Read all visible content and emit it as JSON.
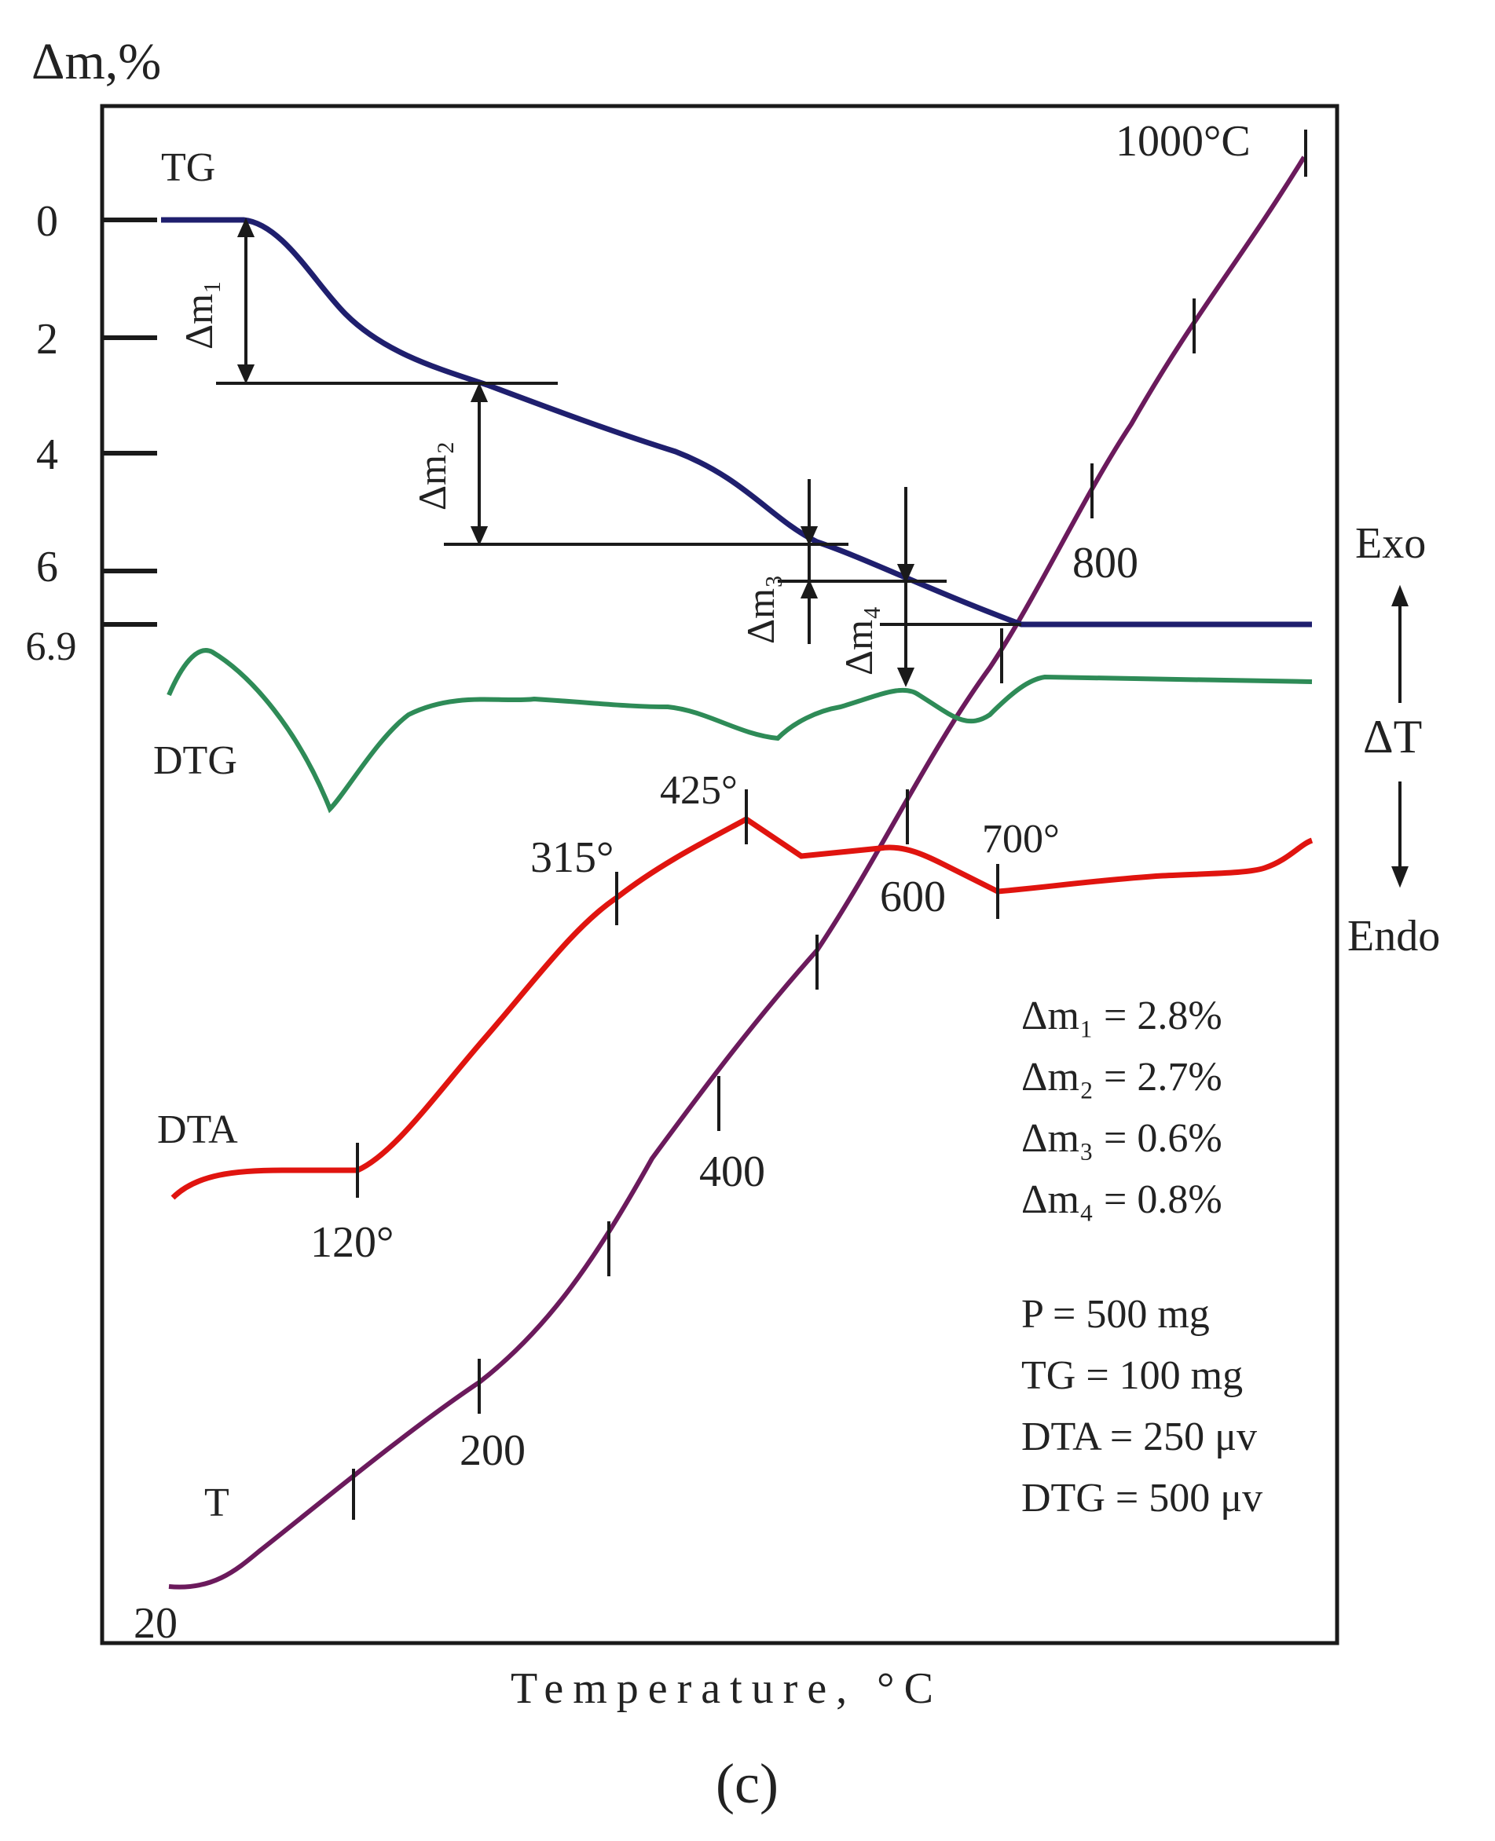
{
  "colors": {
    "frame": "#1a1a1a",
    "tg": "#1f1f6e",
    "dtg": "#2e8b57",
    "dta": "#e0140f",
    "temp": "#6b1a5c",
    "annotation": "#1a1a1a"
  },
  "chart_data": {
    "type": "line",
    "title": "",
    "panel_label": "(c)",
    "ylabel": "Δm,%",
    "xlabel": "Temperature, °C",
    "y_ticks": [
      "0",
      "2",
      "4",
      "6",
      "6.9"
    ],
    "y_tick_values": [
      0,
      2,
      4,
      6,
      6.9
    ],
    "side_labels": {
      "exo": "Exo",
      "delta_t": "ΔT",
      "endo": "Endo"
    },
    "series_labels": {
      "tg": "TG",
      "dtg": "DTG",
      "dta": "DTA",
      "temp": "T"
    },
    "tg_curve": {
      "name": "TG",
      "unit": "% mass loss",
      "points": [
        [
          0,
          0
        ],
        [
          0.07,
          0
        ],
        [
          0.12,
          0.6
        ],
        [
          0.2,
          2.2
        ],
        [
          0.28,
          2.8
        ],
        [
          0.4,
          3.6
        ],
        [
          0.5,
          4.5
        ],
        [
          0.57,
          5.6
        ],
        [
          0.65,
          6.2
        ],
        [
          0.74,
          6.9
        ],
        [
          1.0,
          6.9
        ]
      ]
    },
    "dtg_curve": {
      "name": "DTG",
      "note": "relative signal, shape only",
      "points": [
        [
          0,
          0.5
        ],
        [
          0.04,
          1.0
        ],
        [
          0.14,
          -1.5
        ],
        [
          0.2,
          0.2
        ],
        [
          0.3,
          0.7
        ],
        [
          0.5,
          0.5
        ],
        [
          0.5,
          0.5
        ],
        [
          0.58,
          0.0
        ],
        [
          0.62,
          0.5
        ],
        [
          0.72,
          0.75
        ],
        [
          0.78,
          0.1
        ],
        [
          0.82,
          0.9
        ],
        [
          1.0,
          0.85
        ]
      ]
    },
    "dta_curve": {
      "name": "DTA",
      "note": "relative signal, shape only",
      "points": [
        [
          0,
          0.0
        ],
        [
          0.03,
          0.1
        ],
        [
          0.15,
          0.1
        ],
        [
          0.25,
          1.2
        ],
        [
          0.33,
          2.8
        ],
        [
          0.4,
          3.3
        ],
        [
          0.5,
          3.9
        ],
        [
          0.55,
          3.6
        ],
        [
          0.63,
          3.7
        ],
        [
          0.72,
          3.3
        ],
        [
          0.8,
          3.4
        ],
        [
          0.95,
          3.5
        ],
        [
          1.0,
          3.7
        ]
      ]
    },
    "temp_curve": {
      "name": "T",
      "unit": "°C",
      "points": [
        [
          0,
          20
        ],
        [
          0.04,
          40
        ],
        [
          0.15,
          150
        ],
        [
          0.27,
          300
        ],
        [
          0.4,
          450
        ],
        [
          0.55,
          600
        ],
        [
          0.65,
          740
        ],
        [
          0.82,
          880
        ],
        [
          1.0,
          1000
        ]
      ]
    },
    "dta_peaks": [
      "120°",
      "315°",
      "425°",
      "700°"
    ],
    "temp_labels": [
      "20",
      "200",
      "400",
      "600",
      "800",
      "1000°C"
    ],
    "mass_steps": [
      "Δm₁",
      "Δm₂",
      "Δm₃",
      "Δm₄"
    ],
    "legend": {
      "mass_losses": [
        "Δm₁ = 2.8%",
        "Δm₂ = 2.7%",
        "Δm₃ = 0.6%",
        "Δm₄ = 0.8%"
      ],
      "settings": [
        "P = 500 mg",
        "TG = 100 mg",
        "DTA = 250 μv",
        "DTG = 500 μv"
      ]
    }
  }
}
